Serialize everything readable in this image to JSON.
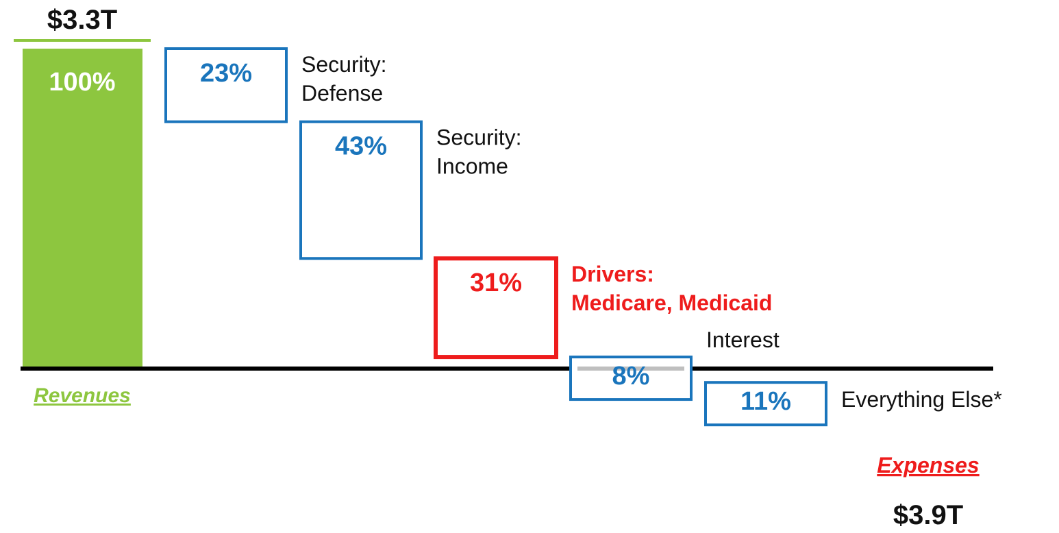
{
  "chart_data": {
    "type": "bar",
    "style": "waterfall",
    "revenue": {
      "total_label": "$3.3T",
      "value": 100,
      "value_label": "100%",
      "caption": "Revenues",
      "color": "#8DC63F"
    },
    "expenses": {
      "total_label": "$3.9T",
      "caption": "Expenses",
      "color": "#EE1C1C"
    },
    "segments": [
      {
        "value": 23,
        "value_label": "23%",
        "label_lines": [
          "Security:",
          "Defense"
        ],
        "color": "#1A75BC",
        "label_color": "#111111",
        "label_bold": false
      },
      {
        "value": 43,
        "value_label": "43%",
        "label_lines": [
          "Security:",
          "Income"
        ],
        "color": "#1A75BC",
        "label_color": "#111111",
        "label_bold": false
      },
      {
        "value": 31,
        "value_label": "31%",
        "label_lines": [
          "Drivers:",
          "Medicare, Medicaid"
        ],
        "color": "#EE1C1C",
        "label_color": "#EE1C1C",
        "label_bold": true
      },
      {
        "value": 8,
        "value_label": "8%",
        "label_lines": [
          "Interest"
        ],
        "color": "#1A75BC",
        "label_color": "#111111",
        "label_bold": false
      },
      {
        "value": 11,
        "value_label": "11%",
        "label_lines": [
          "Everything Else*"
        ],
        "color": "#1A75BC",
        "label_color": "#111111",
        "label_bold": false
      }
    ],
    "baseline_color": "#000000"
  }
}
